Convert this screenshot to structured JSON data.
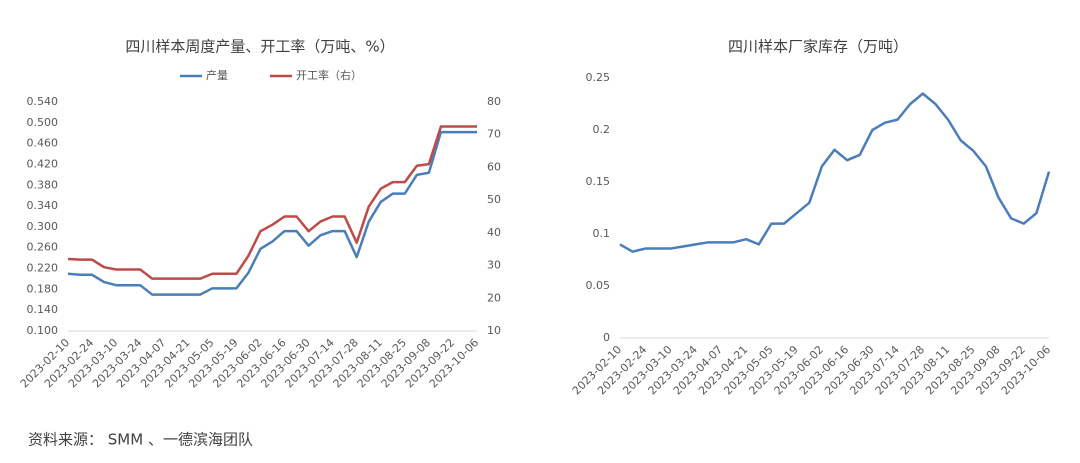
{
  "chart_data": [
    {
      "type": "line",
      "title": "四川样本周度产量、开工率（万吨、%）",
      "categories": [
        "2023-02-10",
        null,
        "2023-02-24",
        null,
        "2023-03-10",
        null,
        "2023-03-24",
        null,
        "2023-04-07",
        null,
        "2023-04-21",
        null,
        "2023-05-05",
        null,
        "2023-05-19",
        null,
        "2023-06-02",
        null,
        "2023-06-16",
        null,
        "2023-06-30",
        null,
        "2023-07-14",
        null,
        "2023-07-28",
        null,
        "2023-08-11",
        null,
        "2023-08-25",
        null,
        "2023-09-08",
        null,
        "2023-09-22",
        null,
        "2023-10-06"
      ],
      "series": [
        {
          "name": "产量",
          "color": "#4a7ebb",
          "values": [
            0.21,
            0.208,
            0.208,
            0.194,
            0.188,
            0.188,
            0.188,
            0.17,
            0.17,
            0.17,
            0.17,
            0.17,
            0.182,
            0.182,
            0.182,
            0.212,
            0.258,
            0.272,
            0.292,
            0.292,
            0.264,
            0.284,
            0.292,
            0.292,
            0.242,
            0.31,
            0.348,
            0.364,
            0.364,
            0.4,
            0.404,
            0.482,
            0.482,
            0.482,
            0.482
          ]
        },
        {
          "name": "开工率（右）",
          "color": "#be4b48",
          "axis": "y2",
          "values": [
            32,
            31.8,
            31.8,
            29.5,
            28.8,
            28.8,
            28.8,
            26,
            26,
            26,
            26,
            26,
            27.5,
            27.5,
            27.5,
            33,
            40.5,
            42.5,
            45,
            45,
            40.5,
            43.5,
            45,
            45,
            37,
            48,
            53.5,
            55.5,
            55.5,
            60.5,
            61,
            72.5,
            72.5,
            72.5,
            72.5
          ]
        }
      ],
      "ylim": [
        0.1,
        0.54
      ],
      "yticks": [
        {
          "value": 0.1,
          "label": "0.100"
        },
        {
          "value": 0.14,
          "label": "0.140"
        },
        {
          "value": 0.18,
          "label": "0.180"
        },
        {
          "value": 0.22,
          "label": "0.220"
        },
        {
          "value": 0.26,
          "label": "0.260"
        },
        {
          "value": 0.3,
          "label": "0.300"
        },
        {
          "value": 0.34,
          "label": "0.340"
        },
        {
          "value": 0.38,
          "label": "0.380"
        },
        {
          "value": 0.42,
          "label": "0.420"
        },
        {
          "value": 0.46,
          "label": "0.460"
        },
        {
          "value": 0.5,
          "label": "0.500"
        },
        {
          "value": 0.54,
          "label": "0.540"
        }
      ],
      "y2lim": [
        10,
        80
      ],
      "y2ticks": [
        10,
        20,
        30,
        40,
        50,
        60,
        70,
        80
      ],
      "grid": false,
      "legend": "top"
    },
    {
      "type": "line",
      "title": "四川样本厂家库存（万吨）",
      "categories": [
        "2023-02-10",
        null,
        "2023-02-24",
        null,
        "2023-03-10",
        null,
        "2023-03-24",
        null,
        "2023-04-07",
        null,
        "2023-04-21",
        null,
        "2023-05-05",
        null,
        "2023-05-19",
        null,
        "2023-06-02",
        null,
        "2023-06-16",
        null,
        "2023-06-30",
        null,
        "2023-07-14",
        null,
        "2023-07-28",
        null,
        "2023-08-11",
        null,
        "2023-08-25",
        null,
        "2023-09-08",
        null,
        "2023-09-22",
        null,
        "2023-10-06"
      ],
      "series": [
        {
          "name": "库存",
          "color": "#4a7ebb",
          "values": [
            0.09,
            0.083,
            0.086,
            0.086,
            0.086,
            0.088,
            0.09,
            0.092,
            0.092,
            0.092,
            0.095,
            0.09,
            0.11,
            0.11,
            0.12,
            0.13,
            0.165,
            0.181,
            0.171,
            0.176,
            0.2,
            0.207,
            0.21,
            0.225,
            0.235,
            0.225,
            0.21,
            0.19,
            0.18,
            0.165,
            0.135,
            0.115,
            0.11,
            0.12,
            0.16
          ]
        }
      ],
      "ylim": [
        0,
        0.25
      ],
      "yticks": [
        0,
        0.05,
        0.1,
        0.15,
        0.2,
        0.25
      ],
      "grid": false,
      "legend": "none"
    }
  ],
  "source": "资料来源： SMM 、一德滨海团队"
}
